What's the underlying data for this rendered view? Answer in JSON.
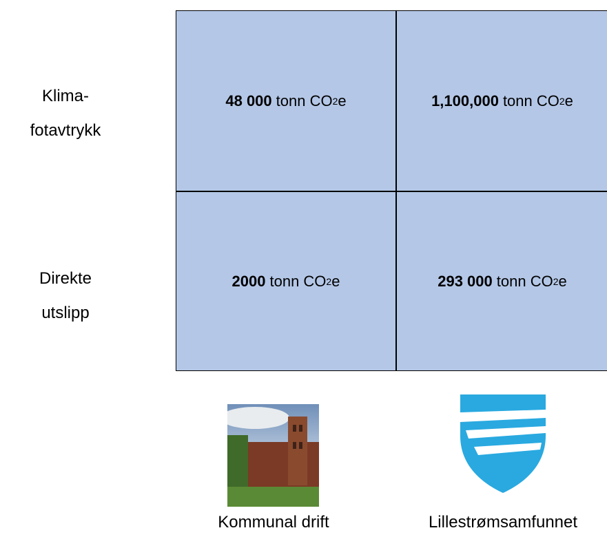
{
  "rows": [
    {
      "label": [
        "Klima-",
        "fotavtrykk"
      ],
      "cells": [
        {
          "value": "48 000",
          "unit": "tonn CO",
          "sub": "2",
          "suffix": "e"
        },
        {
          "value": "1,100,000",
          "unit": "tonn CO",
          "sub": "2",
          "suffix": "e"
        }
      ]
    },
    {
      "label": [
        "Direkte",
        "utslipp"
      ],
      "cells": [
        {
          "value": "2000",
          "unit": "tonn CO",
          "sub": "2",
          "suffix": "e"
        },
        {
          "value": "293 000",
          "unit": "tonn CO",
          "sub": "2",
          "suffix": "e"
        }
      ]
    }
  ],
  "columns": [
    "Kommunal drift",
    "Lillestrømsamfunnet"
  ]
}
